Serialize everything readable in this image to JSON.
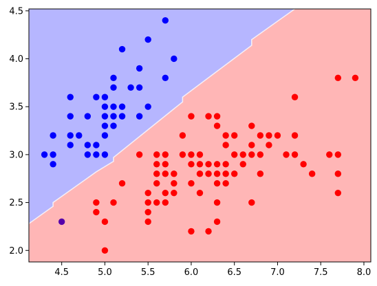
{
  "chart_data": {
    "type": "scatter",
    "title": "",
    "xlabel": "",
    "ylabel": "",
    "xlim": [
      4.12,
      8.08
    ],
    "ylim": [
      1.88,
      4.52
    ],
    "xticks": [
      "4.5",
      "5.0",
      "5.5",
      "6.0",
      "6.5",
      "7.0",
      "7.5",
      "8.0"
    ],
    "yticks": [
      "2.0",
      "2.5",
      "3.0",
      "3.5",
      "4.0",
      "4.5"
    ],
    "grid": false,
    "legend": "none",
    "regions": [
      {
        "class": "blue",
        "color": "#b6b6ff",
        "side": "above boundary"
      },
      {
        "class": "red",
        "color": "#ffb6b6",
        "side": "below boundary"
      }
    ],
    "decision_boundary": {
      "color": "#ffffff",
      "points": [
        [
          4.12,
          2.28
        ],
        [
          4.4,
          2.46
        ],
        [
          4.4,
          2.5
        ],
        [
          4.9,
          2.82
        ],
        [
          5.1,
          2.93
        ],
        [
          5.1,
          2.97
        ],
        [
          5.9,
          3.55
        ],
        [
          5.9,
          3.6
        ],
        [
          6.7,
          4.14
        ],
        [
          6.7,
          4.2
        ],
        [
          7.2,
          4.52
        ]
      ]
    },
    "series": [
      {
        "color": "#0000ff",
        "points": [
          [
            4.3,
            3.0
          ],
          [
            4.4,
            2.9
          ],
          [
            4.4,
            3.0
          ],
          [
            4.4,
            3.2
          ],
          [
            4.6,
            3.1
          ],
          [
            4.6,
            3.2
          ],
          [
            4.6,
            3.4
          ],
          [
            4.6,
            3.6
          ],
          [
            4.7,
            3.2
          ],
          [
            4.8,
            3.0
          ],
          [
            4.8,
            3.1
          ],
          [
            4.8,
            3.4
          ],
          [
            4.9,
            3.0
          ],
          [
            4.9,
            3.1
          ],
          [
            4.9,
            3.6
          ],
          [
            5.0,
            3.0
          ],
          [
            5.0,
            3.2
          ],
          [
            5.0,
            3.3
          ],
          [
            5.0,
            3.4
          ],
          [
            5.0,
            3.5
          ],
          [
            5.0,
            3.6
          ],
          [
            5.1,
            3.3
          ],
          [
            5.1,
            3.4
          ],
          [
            5.1,
            3.5
          ],
          [
            5.1,
            3.7
          ],
          [
            5.1,
            3.8
          ],
          [
            5.2,
            3.4
          ],
          [
            5.2,
            3.5
          ],
          [
            5.2,
            4.1
          ],
          [
            5.3,
            3.7
          ],
          [
            5.4,
            3.4
          ],
          [
            5.4,
            3.7
          ],
          [
            5.4,
            3.9
          ],
          [
            5.5,
            3.5
          ],
          [
            5.5,
            4.2
          ],
          [
            5.7,
            3.8
          ],
          [
            5.7,
            4.4
          ],
          [
            5.8,
            4.0
          ]
        ]
      },
      {
        "color": "#ff0000",
        "points": [
          [
            4.9,
            2.4
          ],
          [
            4.9,
            2.5
          ],
          [
            5.0,
            2.0
          ],
          [
            5.0,
            2.3
          ],
          [
            5.1,
            2.5
          ],
          [
            5.2,
            2.7
          ],
          [
            5.4,
            3.0
          ],
          [
            5.5,
            2.3
          ],
          [
            5.5,
            2.4
          ],
          [
            5.5,
            2.5
          ],
          [
            5.5,
            2.6
          ],
          [
            5.6,
            2.5
          ],
          [
            5.6,
            2.7
          ],
          [
            5.6,
            2.8
          ],
          [
            5.6,
            2.9
          ],
          [
            5.6,
            3.0
          ],
          [
            5.7,
            2.5
          ],
          [
            5.7,
            2.6
          ],
          [
            5.7,
            2.8
          ],
          [
            5.7,
            2.9
          ],
          [
            5.7,
            3.0
          ],
          [
            5.8,
            2.6
          ],
          [
            5.8,
            2.7
          ],
          [
            5.8,
            2.8
          ],
          [
            5.9,
            3.0
          ],
          [
            5.9,
            3.2
          ],
          [
            6.0,
            2.2
          ],
          [
            6.0,
            2.7
          ],
          [
            6.0,
            2.9
          ],
          [
            6.0,
            3.0
          ],
          [
            6.0,
            3.4
          ],
          [
            6.1,
            2.6
          ],
          [
            6.1,
            2.8
          ],
          [
            6.1,
            2.9
          ],
          [
            6.1,
            3.0
          ],
          [
            6.2,
            2.2
          ],
          [
            6.2,
            2.8
          ],
          [
            6.2,
            2.9
          ],
          [
            6.2,
            3.4
          ],
          [
            6.3,
            2.3
          ],
          [
            6.3,
            2.5
          ],
          [
            6.3,
            2.7
          ],
          [
            6.3,
            2.8
          ],
          [
            6.3,
            2.9
          ],
          [
            6.3,
            3.3
          ],
          [
            6.3,
            3.4
          ],
          [
            6.4,
            2.7
          ],
          [
            6.4,
            2.8
          ],
          [
            6.4,
            2.9
          ],
          [
            6.4,
            3.1
          ],
          [
            6.4,
            3.2
          ],
          [
            6.5,
            2.8
          ],
          [
            6.5,
            3.0
          ],
          [
            6.5,
            3.2
          ],
          [
            6.6,
            2.9
          ],
          [
            6.6,
            3.0
          ],
          [
            6.7,
            2.5
          ],
          [
            6.7,
            3.0
          ],
          [
            6.7,
            3.1
          ],
          [
            6.7,
            3.3
          ],
          [
            6.8,
            2.8
          ],
          [
            6.8,
            3.0
          ],
          [
            6.8,
            3.2
          ],
          [
            6.9,
            3.1
          ],
          [
            6.9,
            3.2
          ],
          [
            7.0,
            3.2
          ],
          [
            7.1,
            3.0
          ],
          [
            7.2,
            3.0
          ],
          [
            7.2,
            3.2
          ],
          [
            7.2,
            3.6
          ],
          [
            7.3,
            2.9
          ],
          [
            7.4,
            2.8
          ],
          [
            7.6,
            3.0
          ],
          [
            7.7,
            2.6
          ],
          [
            7.7,
            2.8
          ],
          [
            7.7,
            3.0
          ],
          [
            7.7,
            3.8
          ],
          [
            7.9,
            3.8
          ]
        ]
      },
      {
        "color": "#5500aa",
        "points": [
          [
            4.5,
            2.3
          ]
        ]
      }
    ]
  }
}
